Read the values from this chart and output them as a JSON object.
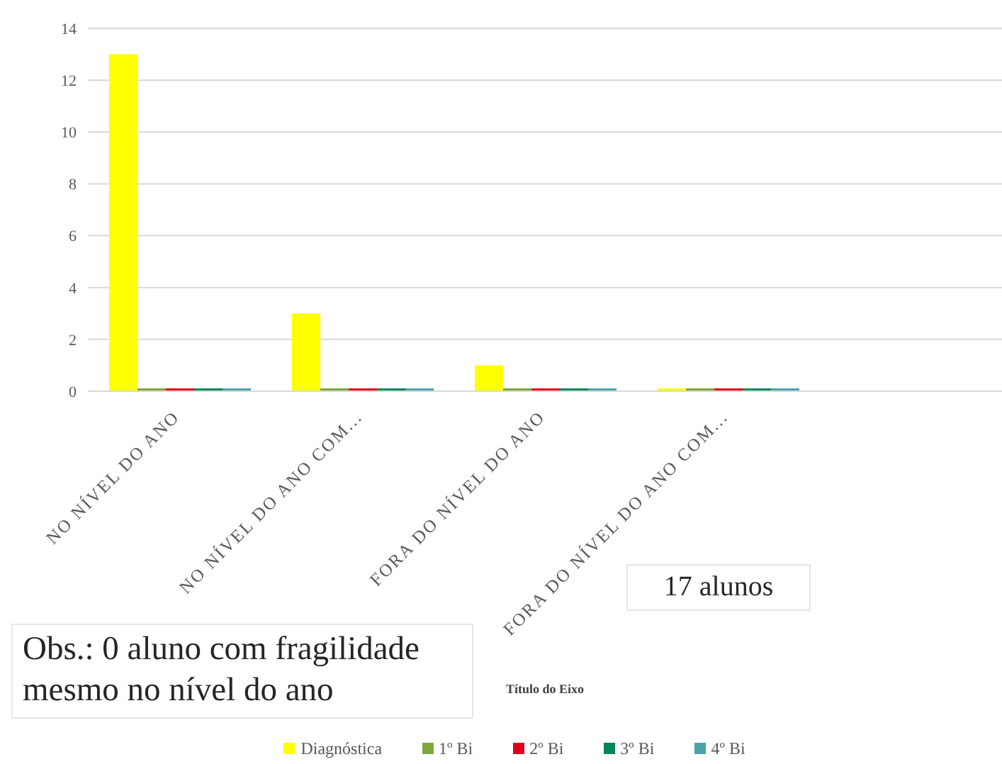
{
  "chart_data": {
    "type": "bar",
    "xlabel": "Título do Eixo",
    "categories": [
      "NO NÍVEL DO ANO",
      "NO NÍVEL DO ANO COM...",
      "FORA DO NÍVEL DO ANO",
      "FORA DO NÍVEL DO ANO COM..."
    ],
    "series": [
      {
        "name": "Diagnóstica",
        "color": "#ffff00",
        "values": [
          13,
          3,
          1,
          0
        ]
      },
      {
        "name": "1º Bi",
        "color": "#7fa63a",
        "values": [
          0,
          0,
          0,
          0
        ]
      },
      {
        "name": "2º Bi",
        "color": "#e0001b",
        "values": [
          0,
          0,
          0,
          0
        ]
      },
      {
        "name": "3º Bi",
        "color": "#00875a",
        "values": [
          0,
          0,
          0,
          0
        ]
      },
      {
        "name": "4º Bi",
        "color": "#4aa3a8",
        "values": [
          0,
          0,
          0,
          0
        ]
      }
    ],
    "ylim": [
      0,
      14
    ],
    "yticks": [
      0,
      2,
      4,
      6,
      8,
      10,
      12,
      14
    ],
    "grid": "y",
    "legend": "bottom",
    "annotations": [
      "17 alunos",
      "Obs.: 0 aluno com fragilidade mesmo no nível do ano"
    ]
  }
}
